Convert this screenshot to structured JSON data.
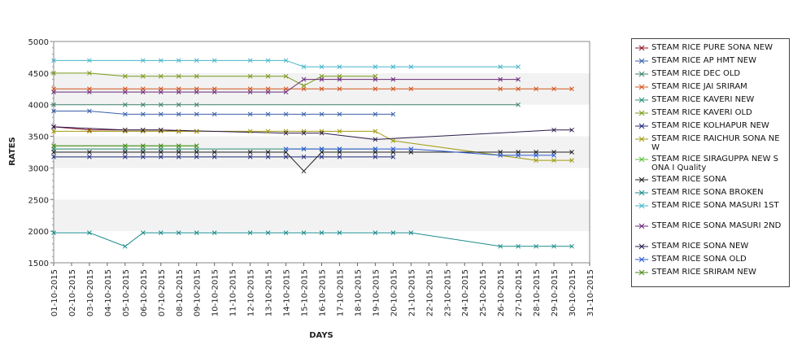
{
  "chart_data": {
    "type": "line",
    "xlabel": "DAYS",
    "ylabel": "RATES",
    "ylim": [
      1500,
      5000
    ],
    "yticks": [
      1500,
      2000,
      2500,
      3000,
      3500,
      4000,
      4500,
      5000
    ],
    "grid": "alternating horizontal bands",
    "legend_placement": "right",
    "categories": [
      "01-10-2015",
      "02-10-2015",
      "03-10-2015",
      "04-10-2015",
      "05-10-2015",
      "06-10-2015",
      "07-10-2015",
      "08-10-2015",
      "09-10-2015",
      "10-10-2015",
      "11-10-2015",
      "12-10-2015",
      "13-10-2015",
      "14-10-2015",
      "15-10-2015",
      "16-10-2015",
      "17-10-2015",
      "18-10-2015",
      "19-10-2015",
      "20-10-2015",
      "21-10-2015",
      "22-10-2015",
      "23-10-2015",
      "24-10-2015",
      "25-10-2015",
      "26-10-2015",
      "27-10-2015",
      "28-10-2015",
      "29-10-2015",
      "30-10-2015",
      "31-10-2015"
    ],
    "xticks": [
      "01-10-2015",
      "02-10-2015",
      "03-10-2015",
      "04-10-2015",
      "05-10-2015",
      "06-10-2015",
      "07-10-2015",
      "08-10-2015",
      "09-10-2015",
      "10-10-2015",
      "11-10-2015",
      "12-10-2015",
      "13-10-2015",
      "14-10-2015",
      "15-10-2015",
      "16-10-2015",
      "17-10-2015",
      "18-10-2015",
      "19-10-2015",
      "20-10-2015",
      "21-10-2015",
      "22-10-2015",
      "23-10-2015",
      "24-10-2015",
      "25-10-2015",
      "26-10-2015",
      "27-10-2015",
      "28-10-2015",
      "29-10-2015",
      "30-10-2015",
      "31-10-2015"
    ],
    "series": [
      {
        "name": " STEAM RICE PURE SONA NEW",
        "color": "#8b1a2a",
        "x": [
          "01-10-2015",
          "03-10-2015",
          "05-10-2015",
          "06-10-2015",
          "07-10-2015",
          "08-10-2015",
          "09-10-2015"
        ],
        "values": [
          3650,
          3600,
          3600,
          3600,
          3600,
          3580,
          3580
        ]
      },
      {
        "name": "STEAM RICE AP HMT NEW",
        "color": "#3a5fa8",
        "x": [
          "01-10-2015",
          "03-10-2015",
          "05-10-2015",
          "06-10-2015",
          "07-10-2015",
          "08-10-2015",
          "09-10-2015",
          "10-10-2015",
          "12-10-2015",
          "13-10-2015",
          "14-10-2015",
          "15-10-2015",
          "16-10-2015",
          "17-10-2015",
          "19-10-2015",
          "20-10-2015"
        ],
        "values": [
          3900,
          3900,
          3850,
          3850,
          3850,
          3850,
          3850,
          3850,
          3850,
          3850,
          3850,
          3850,
          3850,
          3850,
          3850,
          3850
        ]
      },
      {
        "name": "STEAM RICE DEC OLD",
        "color": "#3b7f6a",
        "x": [
          "01-10-2015",
          "05-10-2015",
          "06-10-2015",
          "07-10-2015",
          "08-10-2015",
          "09-10-2015",
          "27-10-2015"
        ],
        "values": [
          4000,
          4000,
          4000,
          4000,
          4000,
          4000,
          4000
        ]
      },
      {
        "name": "STEAM RICE JAI SRIRAM",
        "color": "#d2541a",
        "x": [
          "01-10-2015",
          "03-10-2015",
          "05-10-2015",
          "06-10-2015",
          "07-10-2015",
          "08-10-2015",
          "09-10-2015",
          "10-10-2015",
          "12-10-2015",
          "13-10-2015",
          "14-10-2015",
          "15-10-2015",
          "16-10-2015",
          "17-10-2015",
          "19-10-2015",
          "20-10-2015",
          "21-10-2015",
          "26-10-2015",
          "27-10-2015",
          "28-10-2015",
          "29-10-2015",
          "30-10-2015"
        ],
        "values": [
          4250,
          4250,
          4250,
          4250,
          4250,
          4250,
          4250,
          4250,
          4250,
          4250,
          4250,
          4250,
          4250,
          4250,
          4250,
          4250,
          4250,
          4250,
          4250,
          4250,
          4250,
          4250
        ]
      },
      {
        "name": "STEAM RICE KAVERI NEW",
        "color": "#2f8f7a",
        "x": [
          "01-10-2015",
          "05-10-2015",
          "06-10-2015",
          "07-10-2015",
          "08-10-2015",
          "09-10-2015",
          "15-10-2015",
          "16-10-2015",
          "17-10-2015",
          "19-10-2015"
        ],
        "values": [
          3300,
          3300,
          3300,
          3300,
          3300,
          3300,
          3300,
          3300,
          3300,
          3300
        ]
      },
      {
        "name": "STEAM RICE KAVERI OLD",
        "color": "#7a9a1a",
        "x": [
          "01-10-2015",
          "03-10-2015",
          "05-10-2015",
          "06-10-2015",
          "07-10-2015",
          "08-10-2015",
          "09-10-2015",
          "12-10-2015",
          "13-10-2015",
          "14-10-2015",
          "15-10-2015",
          "16-10-2015",
          "17-10-2015",
          "19-10-2015"
        ],
        "values": [
          4500,
          4500,
          4450,
          4450,
          4450,
          4450,
          4450,
          4450,
          4450,
          4450,
          4300,
          4450,
          4450,
          4450
        ]
      },
      {
        "name": "STEAM RICE KOLHAPUR NEW",
        "color": "#1f2a7a",
        "x": [
          "01-10-2015",
          "03-10-2015",
          "05-10-2015",
          "06-10-2015",
          "07-10-2015",
          "08-10-2015",
          "09-10-2015",
          "10-10-2015",
          "12-10-2015",
          "13-10-2015",
          "14-10-2015",
          "15-10-2015",
          "16-10-2015",
          "17-10-2015",
          "19-10-2015",
          "20-10-2015"
        ],
        "values": [
          3175,
          3175,
          3175,
          3175,
          3175,
          3175,
          3175,
          3175,
          3175,
          3175,
          3175,
          3175,
          3175,
          3175,
          3175,
          3175
        ]
      },
      {
        "name": "STEAM RICE RAICHUR SONA NEW",
        "color": "#a09a10",
        "x": [
          "01-10-2015",
          "03-10-2015",
          "05-10-2015",
          "06-10-2015",
          "07-10-2015",
          "08-10-2015",
          "09-10-2015",
          "12-10-2015",
          "13-10-2015",
          "14-10-2015",
          "15-10-2015",
          "16-10-2015",
          "17-10-2015",
          "19-10-2015",
          "20-10-2015",
          "28-10-2015",
          "29-10-2015",
          "30-10-2015"
        ],
        "values": [
          3580,
          3580,
          3580,
          3580,
          3580,
          3580,
          3580,
          3580,
          3580,
          3580,
          3580,
          3580,
          3580,
          3580,
          3430,
          3120,
          3120,
          3120
        ]
      },
      {
        "name": "STEAM RICE SIRAGUPPA NEW SONA I Quality",
        "color": "#5bc040",
        "x": [
          "01-10-2015",
          "05-10-2015",
          "06-10-2015",
          "07-10-2015",
          "08-10-2015",
          "09-10-2015"
        ],
        "values": [
          3350,
          3350,
          3350,
          3350,
          3350,
          3350
        ]
      },
      {
        "name": "STEAM RICE SONA",
        "color": "#222222",
        "x": [
          "01-10-2015",
          "03-10-2015",
          "05-10-2015",
          "06-10-2015",
          "07-10-2015",
          "08-10-2015",
          "09-10-2015",
          "10-10-2015",
          "12-10-2015",
          "13-10-2015",
          "14-10-2015",
          "15-10-2015",
          "16-10-2015",
          "17-10-2015",
          "19-10-2015",
          "20-10-2015",
          "21-10-2015",
          "26-10-2015",
          "27-10-2015",
          "28-10-2015",
          "29-10-2015",
          "30-10-2015"
        ],
        "values": [
          3250,
          3250,
          3250,
          3250,
          3250,
          3250,
          3250,
          3250,
          3250,
          3250,
          3250,
          2950,
          3250,
          3250,
          3250,
          3250,
          3250,
          3250,
          3250,
          3250,
          3250,
          3250
        ]
      },
      {
        "name": "STEAM RICE SONA BROKEN",
        "color": "#1a8a8a",
        "x": [
          "01-10-2015",
          "03-10-2015",
          "05-10-2015",
          "06-10-2015",
          "07-10-2015",
          "08-10-2015",
          "09-10-2015",
          "10-10-2015",
          "12-10-2015",
          "13-10-2015",
          "14-10-2015",
          "15-10-2015",
          "16-10-2015",
          "17-10-2015",
          "19-10-2015",
          "20-10-2015",
          "21-10-2015",
          "26-10-2015",
          "27-10-2015",
          "28-10-2015",
          "29-10-2015",
          "30-10-2015"
        ],
        "values": [
          1975,
          1975,
          1760,
          1975,
          1975,
          1975,
          1975,
          1975,
          1975,
          1975,
          1975,
          1975,
          1975,
          1975,
          1975,
          1975,
          1975,
          1760,
          1760,
          1760,
          1760,
          1760
        ]
      },
      {
        "name": "STEAM RICE SONA MASURI 1ST",
        "color": "#45b5c9",
        "x": [
          "01-10-2015",
          "03-10-2015",
          "06-10-2015",
          "07-10-2015",
          "08-10-2015",
          "09-10-2015",
          "10-10-2015",
          "12-10-2015",
          "13-10-2015",
          "14-10-2015",
          "15-10-2015",
          "16-10-2015",
          "17-10-2015",
          "19-10-2015",
          "20-10-2015",
          "21-10-2015",
          "26-10-2015",
          "27-10-2015"
        ],
        "values": [
          4700,
          4700,
          4700,
          4700,
          4700,
          4700,
          4700,
          4700,
          4700,
          4700,
          4600,
          4600,
          4600,
          4600,
          4600,
          4600,
          4600,
          4600
        ]
      },
      {
        "name": "STEAM RICE SONA MASURI 2ND",
        "color": "#6a2a7a",
        "x": [
          "01-10-2015",
          "03-10-2015",
          "05-10-2015",
          "06-10-2015",
          "07-10-2015",
          "08-10-2015",
          "09-10-2015",
          "10-10-2015",
          "12-10-2015",
          "13-10-2015",
          "14-10-2015",
          "15-10-2015",
          "16-10-2015",
          "17-10-2015",
          "19-10-2015",
          "20-10-2015",
          "26-10-2015",
          "27-10-2015"
        ],
        "values": [
          4200,
          4200,
          4200,
          4200,
          4200,
          4200,
          4200,
          4200,
          4200,
          4200,
          4200,
          4400,
          4400,
          4400,
          4400,
          4400,
          4400,
          4400
        ]
      },
      {
        "name": "STEAM RICE SONA NEW",
        "color": "#2a1a4a",
        "x": [
          "01-10-2015",
          "05-10-2015",
          "06-10-2015",
          "07-10-2015",
          "14-10-2015",
          "15-10-2015",
          "16-10-2015",
          "19-10-2015",
          "29-10-2015",
          "30-10-2015"
        ],
        "values": [
          3650,
          3600,
          3600,
          3600,
          3550,
          3550,
          3550,
          3450,
          3600,
          3600
        ]
      },
      {
        "name": "STEAM RICE SONA OLD",
        "color": "#2a5ad0",
        "x": [
          "14-10-2015",
          "15-10-2015",
          "16-10-2015",
          "17-10-2015",
          "19-10-2015",
          "20-10-2015",
          "21-10-2015",
          "26-10-2015",
          "27-10-2015",
          "28-10-2015",
          "29-10-2015"
        ],
        "values": [
          3300,
          3300,
          3300,
          3300,
          3300,
          3300,
          3300,
          3200,
          3200,
          3200,
          3200
        ]
      },
      {
        "name": "STEAM RICE SRIRAM NEW",
        "color": "#4a8a1a",
        "x": [
          "01-10-2015",
          "05-10-2015",
          "06-10-2015",
          "07-10-2015",
          "08-10-2015",
          "09-10-2015"
        ],
        "values": [
          3350,
          3350,
          3350,
          3350,
          3350,
          3350
        ]
      }
    ]
  }
}
